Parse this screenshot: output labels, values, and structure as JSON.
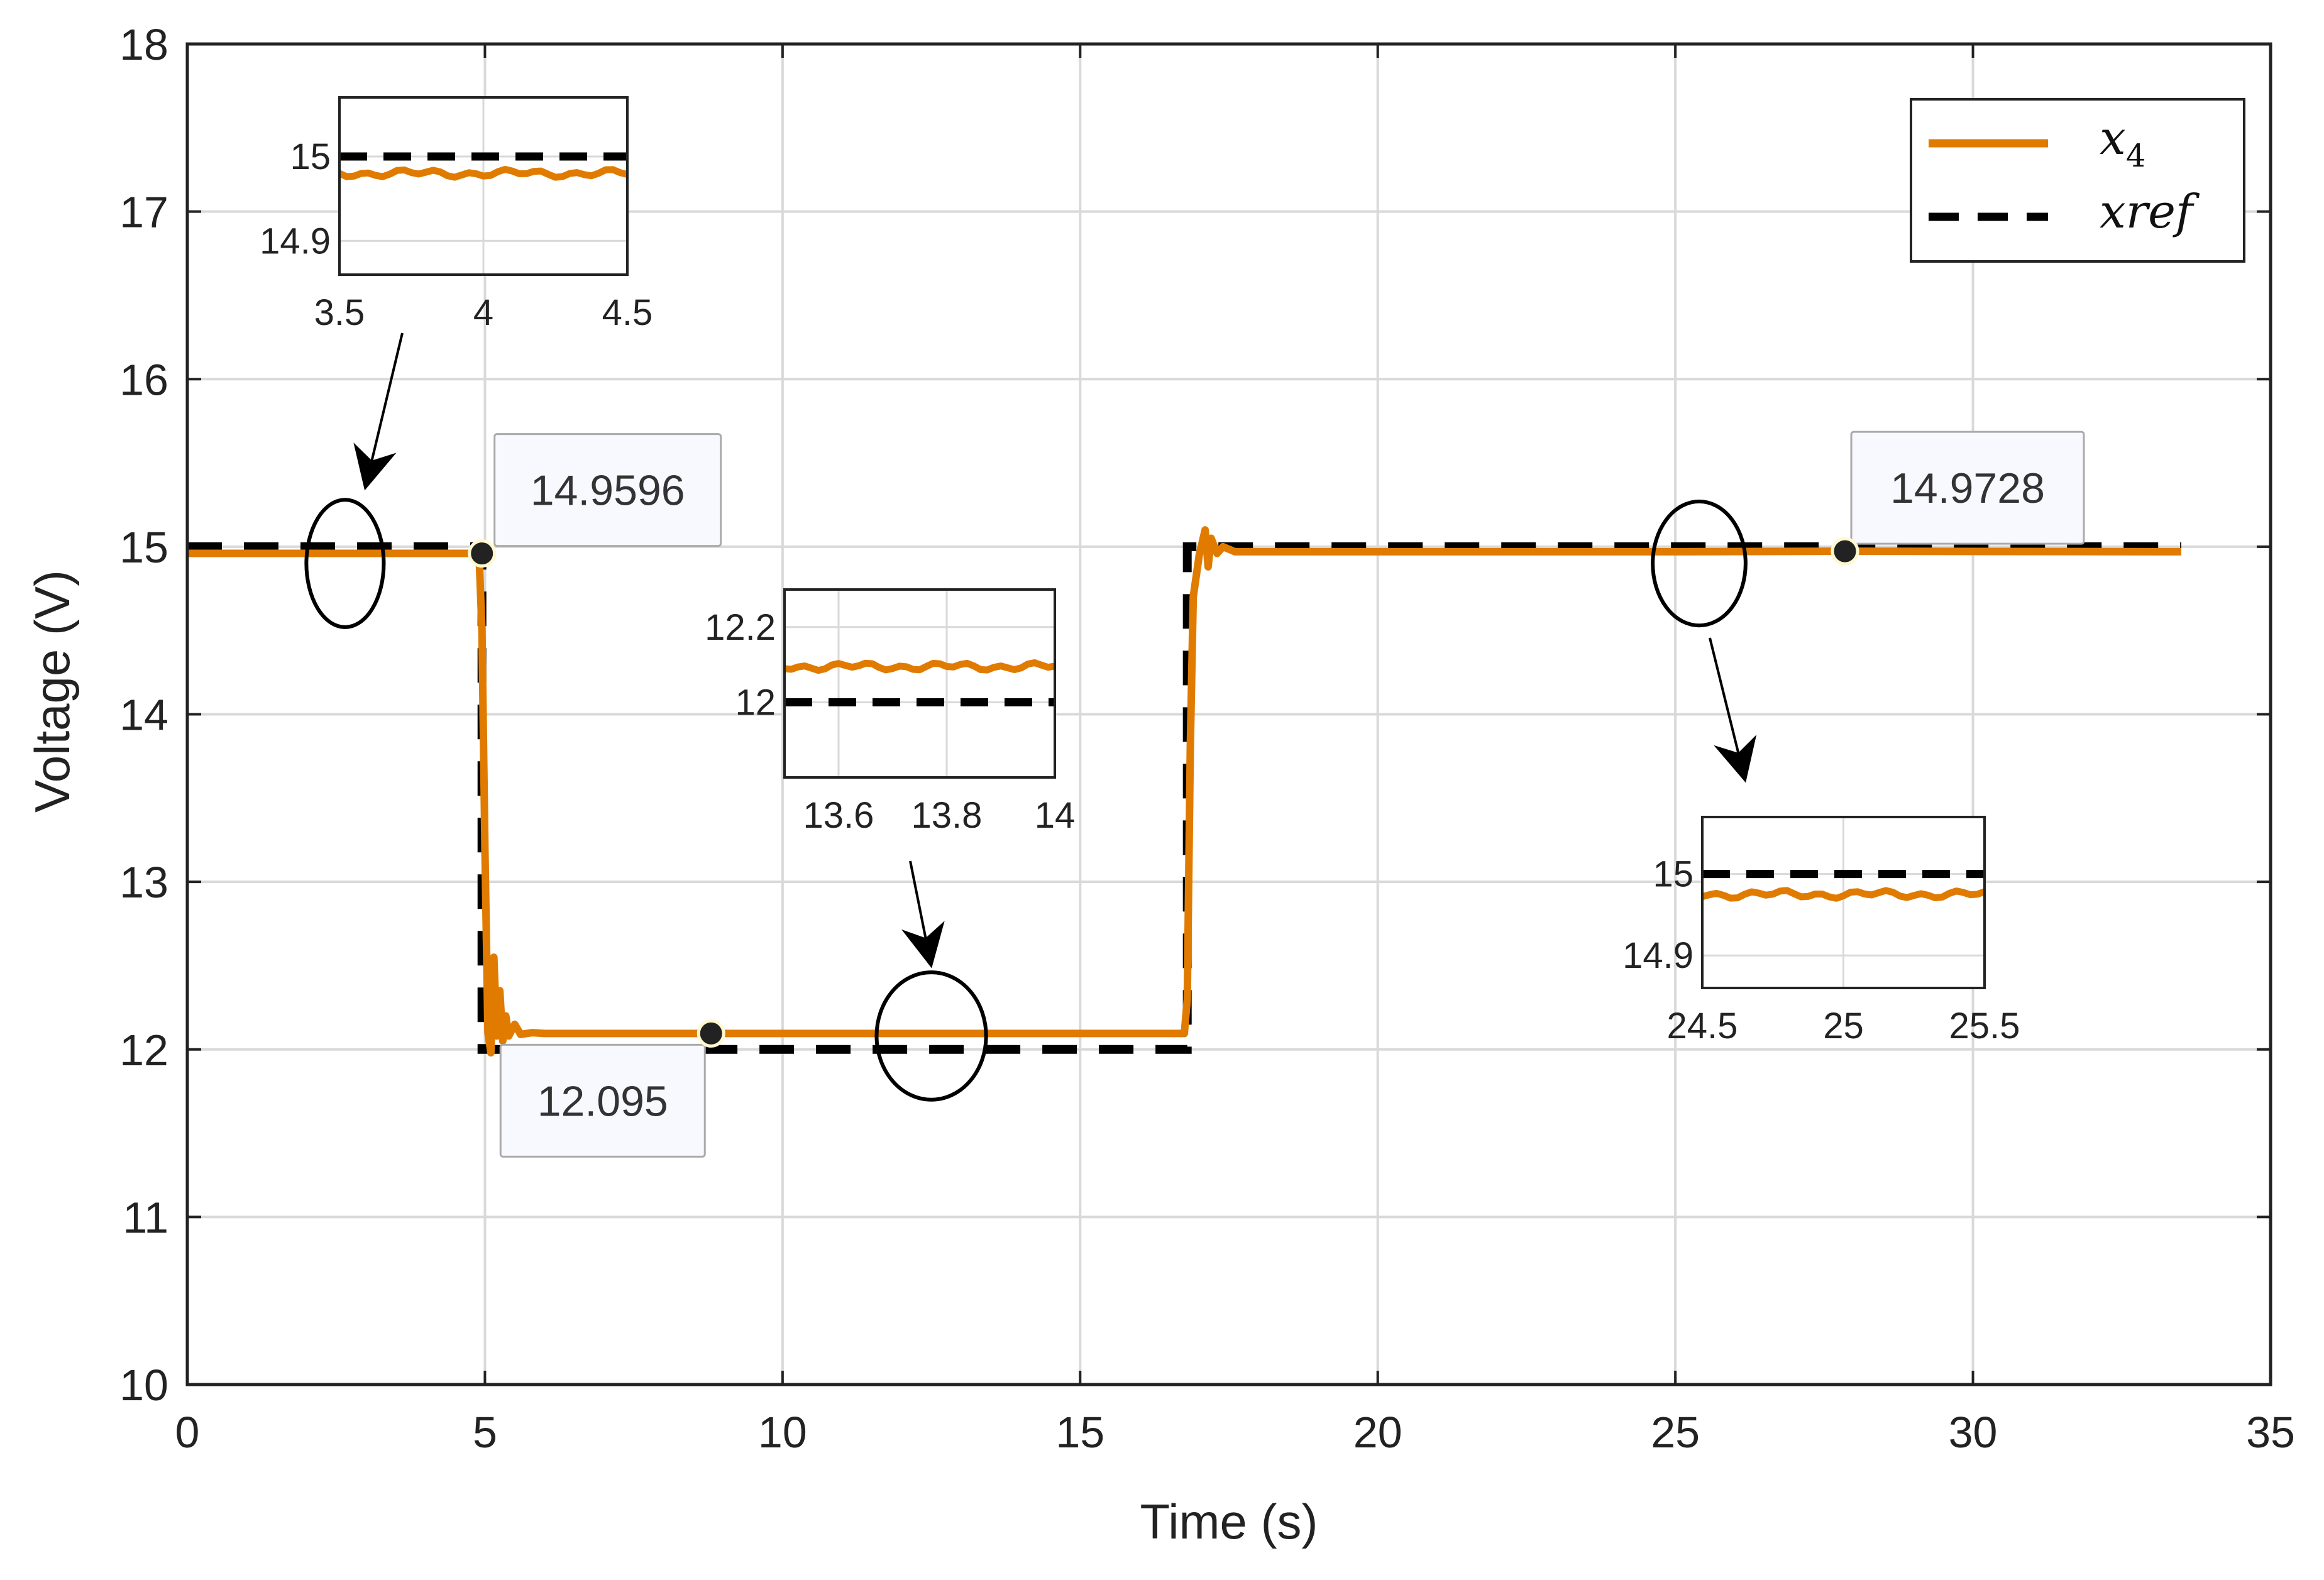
{
  "chart_data": {
    "type": "line",
    "xlabel": "Time (s)",
    "ylabel": "Voltage (V)",
    "xlim": [
      0,
      35
    ],
    "ylim": [
      10,
      18
    ],
    "xticks": [
      "0",
      "5",
      "10",
      "15",
      "20",
      "25",
      "30",
      "35"
    ],
    "yticks": [
      "10",
      "11",
      "12",
      "13",
      "14",
      "15",
      "16",
      "17",
      "18"
    ],
    "grid": true,
    "legend_position": "top-right",
    "colors": {
      "x4": "#E07B00",
      "xref": "#000000"
    },
    "series": [
      {
        "name": "x4",
        "label_base": "x",
        "label_sub": "4",
        "style": "solid",
        "x": [
          0,
          4.9,
          4.95,
          5.0,
          5.05,
          5.1,
          5.15,
          5.2,
          5.25,
          5.3,
          5.35,
          5.4,
          5.5,
          5.6,
          5.8,
          6.0,
          8.0,
          10.0,
          13.0,
          16.75,
          16.8,
          16.85,
          16.9,
          17.0,
          17.1,
          17.15,
          17.2,
          17.3,
          17.4,
          17.6,
          18.0,
          20.0,
          25.0,
          28.0,
          33.5
        ],
        "y": [
          14.96,
          14.96,
          14.5,
          13.2,
          12.1,
          11.98,
          12.55,
          12.08,
          12.35,
          12.05,
          12.2,
          12.08,
          12.15,
          12.09,
          12.1,
          12.095,
          12.095,
          12.095,
          12.095,
          12.095,
          12.3,
          13.8,
          14.7,
          14.95,
          15.1,
          14.88,
          15.05,
          14.96,
          15.0,
          14.97,
          14.97,
          14.97,
          14.97,
          14.9728,
          14.97
        ]
      },
      {
        "name": "xref",
        "label": "xref",
        "style": "dashed",
        "x": [
          0,
          4.95,
          4.95,
          16.8,
          16.8,
          33.5
        ],
        "y": [
          15,
          15,
          12,
          12,
          15,
          15
        ]
      }
    ],
    "datatips": [
      {
        "x": 4.95,
        "y": 14.9596,
        "label": "14.9596"
      },
      {
        "x": 8.8,
        "y": 12.095,
        "label": "12.095"
      },
      {
        "x": 27.85,
        "y": 14.9728,
        "label": "14.9728"
      }
    ],
    "zoom_markers": [
      {
        "cx": 2.65,
        "cy": 14.9,
        "rx": 0.65,
        "ry": 0.38
      },
      {
        "cx": 12.5,
        "cy": 12.08,
        "rx": 0.92,
        "ry": 0.38
      },
      {
        "cx": 25.4,
        "cy": 14.9,
        "rx": 0.78,
        "ry": 0.37
      }
    ],
    "insets": [
      {
        "xlim": [
          3.5,
          4.5
        ],
        "ylim": [
          14.86,
          15.07
        ],
        "xticks": [
          "3.5",
          "4",
          "4.5"
        ],
        "xtick_values": [
          3.5,
          4,
          4.5
        ],
        "yticks": [
          "14.9",
          "15"
        ],
        "ytick_values": [
          14.9,
          15
        ],
        "x4_level": 14.98,
        "xref_level": 15
      },
      {
        "xlim": [
          13.5,
          14.0
        ],
        "ylim": [
          11.8,
          12.3
        ],
        "xticks": [
          "13.6",
          "13.8",
          "14"
        ],
        "xtick_values": [
          13.6,
          13.8,
          14.0
        ],
        "yticks": [
          "12",
          "12.2"
        ],
        "ytick_values": [
          12,
          12.2
        ],
        "x4_level": 12.095,
        "xref_level": 12
      },
      {
        "xlim": [
          24.5,
          25.5
        ],
        "ylim": [
          14.86,
          15.07
        ],
        "xticks": [
          "24.5",
          "25",
          "25.5"
        ],
        "xtick_values": [
          24.5,
          25,
          25.5
        ],
        "yticks": [
          "14.9",
          "15"
        ],
        "ytick_values": [
          14.9,
          15
        ],
        "x4_level": 14.975,
        "xref_level": 15
      }
    ]
  }
}
